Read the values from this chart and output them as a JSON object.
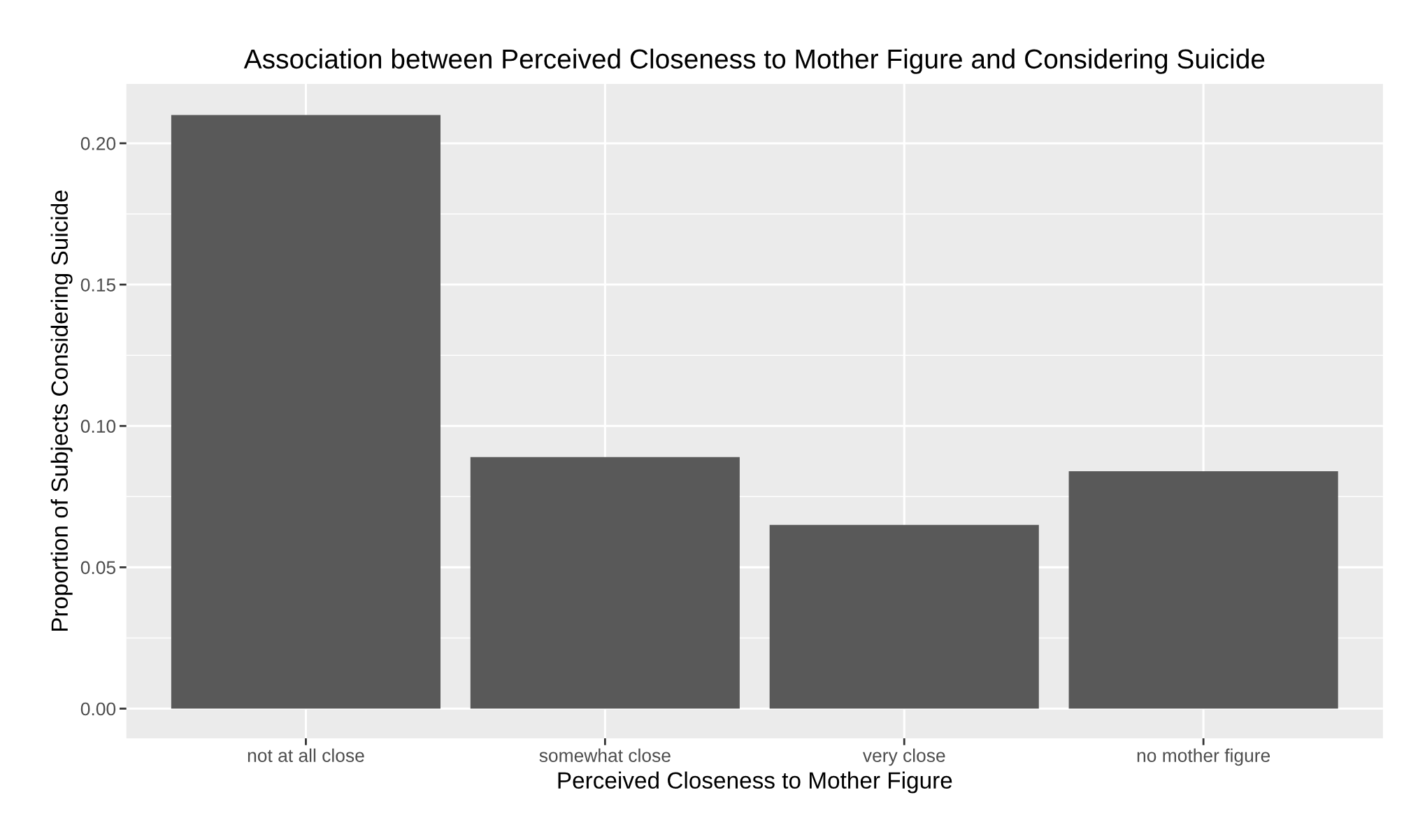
{
  "chart_data": {
    "type": "bar",
    "title": "Association between Perceived Closeness to Mother Figure and Considering Suicide",
    "xlabel": "Perceived Closeness to Mother Figure",
    "ylabel": "Proportion of Subjects Considering Suicide",
    "categories": [
      "not at all close",
      "somewhat close",
      "very close",
      "no mother figure"
    ],
    "values": [
      0.21,
      0.089,
      0.065,
      0.084
    ],
    "color": "#595959",
    "ylim": [
      -0.0105,
      0.221
    ],
    "yticks": [
      {
        "value": 0,
        "label": "0.00"
      },
      {
        "value": 0.05,
        "label": "0.05"
      },
      {
        "value": 0.1,
        "label": "0.10"
      },
      {
        "value": 0.15,
        "label": "0.15"
      },
      {
        "value": 0.2,
        "label": "0.20"
      }
    ],
    "grid": true,
    "legend": false
  }
}
